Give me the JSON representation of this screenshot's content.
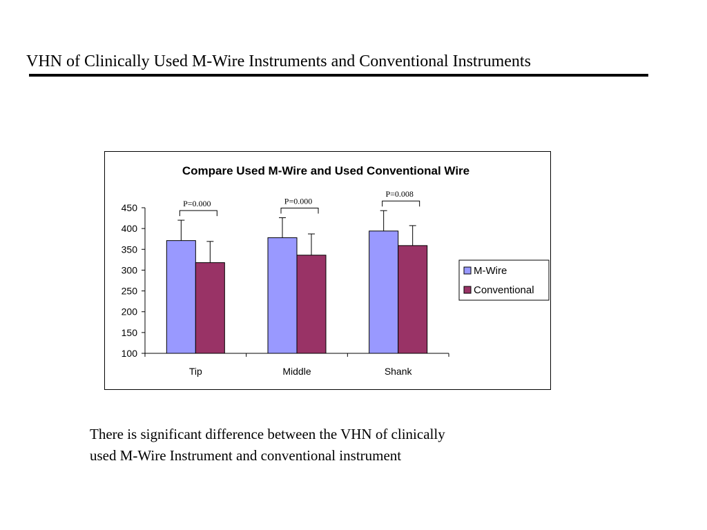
{
  "slide": {
    "title": "VHN of Clinically Used M-Wire Instruments and Conventional Instruments",
    "caption_line1": "There is significant difference between the VHN of clinically",
    "caption_line2": "used M-Wire Instrument and conventional instrument"
  },
  "chart_data": {
    "type": "bar",
    "title": "Compare Used M-Wire and Used Conventional Wire",
    "xlabel": "",
    "ylabel": "",
    "categories": [
      "Tip",
      "Middle",
      "Shank"
    ],
    "series": [
      {
        "name": "M-Wire",
        "color": "#9999ff",
        "values": [
          371,
          378,
          394
        ],
        "error": [
          49,
          48,
          49
        ]
      },
      {
        "name": "Conventional",
        "color": "#993366",
        "values": [
          318,
          336,
          359
        ],
        "error": [
          51,
          51,
          48
        ]
      }
    ],
    "ylim": [
      100,
      450
    ],
    "yticks": [
      "100",
      "150",
      "200",
      "250",
      "300",
      "350",
      "400",
      "450"
    ],
    "annotations": [
      "P=0.000",
      "P=0.000",
      "P=0.008"
    ],
    "legend": "right",
    "grid": false
  }
}
